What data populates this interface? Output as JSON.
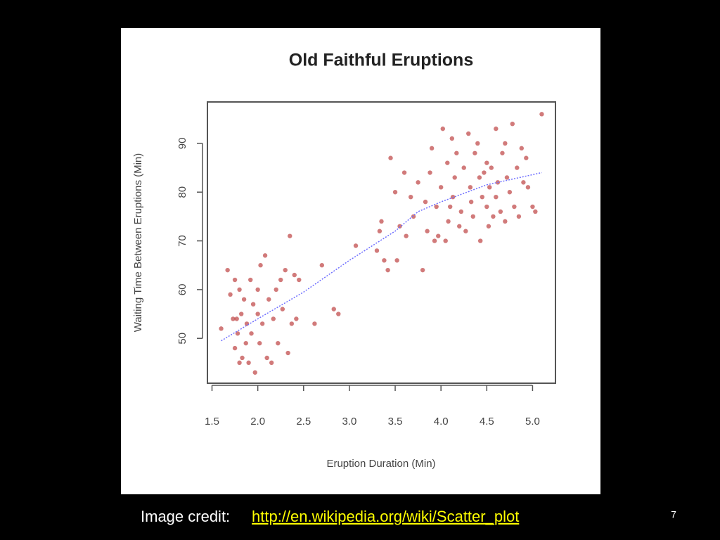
{
  "chart_data": {
    "type": "scatter",
    "title": "Old Faithful Eruptions",
    "x_label": "Eruption Duration (Min)",
    "y_label": "Waiting Time Between Eruptions (Min)",
    "xlim": [
      1.45,
      5.25
    ],
    "ylim": [
      40.8,
      98.5
    ],
    "xticks": [
      1.5,
      {
        "value": 2,
        "label": "2.0"
      },
      2.5,
      {
        "value": 3,
        "label": "3.0"
      },
      3.5,
      {
        "value": 4,
        "label": "4.0"
      },
      4.5,
      {
        "value": 5,
        "label": "5.0"
      }
    ],
    "yticks": [
      50,
      60,
      70,
      80,
      90
    ],
    "series": [
      {
        "type": "scatter",
        "color": "#b22222",
        "x": [
          1.6,
          1.67,
          1.7,
          1.73,
          1.75,
          1.75,
          1.78,
          1.8,
          1.8,
          1.82,
          1.83,
          1.85,
          1.87,
          1.88,
          1.9,
          1.92,
          1.93,
          1.95,
          1.97,
          2.0,
          2.0,
          2.02,
          2.03,
          2.05,
          2.08,
          2.1,
          2.12,
          2.15,
          2.17,
          2.2,
          2.22,
          2.25,
          2.27,
          2.3,
          2.33,
          2.35,
          2.37,
          2.4,
          2.42,
          2.45,
          2.62,
          2.7,
          2.83,
          2.88,
          1.77,
          3.07,
          3.35,
          3.38,
          3.42,
          3.52,
          3.55,
          3.3,
          3.33,
          3.45,
          3.5,
          3.6,
          3.62,
          3.67,
          3.7,
          3.75,
          3.8,
          3.83,
          3.85,
          3.88,
          3.9,
          3.93,
          3.95,
          3.97,
          4.0,
          4.02,
          4.05,
          4.07,
          4.08,
          4.1,
          4.12,
          4.13,
          4.15,
          4.17,
          4.2,
          4.22,
          4.25,
          4.27,
          4.3,
          4.32,
          4.33,
          4.35,
          4.37,
          4.4,
          4.42,
          4.43,
          4.45,
          4.47,
          4.5,
          4.5,
          4.52,
          4.53,
          4.55,
          4.57,
          4.6,
          4.6,
          4.62,
          4.65,
          4.67,
          4.7,
          4.7,
          4.72,
          4.75,
          4.78,
          4.8,
          4.83,
          4.85,
          4.88,
          4.9,
          4.93,
          4.95,
          5.0,
          5.03,
          5.1
        ],
        "values": [
          52,
          64,
          59,
          54,
          48,
          62,
          51,
          45,
          60,
          55,
          46,
          58,
          49,
          53,
          45,
          62,
          51,
          57,
          43,
          55,
          60,
          49,
          65,
          53,
          67,
          46,
          58,
          45,
          54,
          60,
          49,
          62,
          56,
          64,
          47,
          71,
          53,
          63,
          54,
          62,
          53,
          65,
          56,
          55,
          54,
          69,
          74,
          66,
          64,
          66,
          73,
          68,
          72,
          87,
          80,
          84,
          71,
          79,
          75,
          82,
          64,
          78,
          72,
          84,
          89,
          70,
          77,
          71,
          81,
          93,
          70,
          86,
          74,
          77,
          91,
          79,
          83,
          88,
          73,
          76,
          85,
          72,
          92,
          81,
          78,
          75,
          88,
          90,
          83,
          70,
          79,
          84,
          77,
          86,
          73,
          81,
          85,
          75,
          93,
          79,
          82,
          76,
          88,
          90,
          74,
          83,
          80,
          94,
          77,
          85,
          75,
          89,
          82,
          87,
          81,
          77,
          76,
          96
        ]
      },
      {
        "type": "line",
        "color": "#6f6fff",
        "x": [
          1.6,
          2.0,
          2.5,
          3.0,
          3.5,
          3.75,
          4.0,
          4.5,
          5.1
        ],
        "values": [
          49.5,
          54,
          59.5,
          66,
          72,
          76,
          78,
          81.5,
          84
        ]
      }
    ]
  },
  "slide": {
    "credit_label": "Image credit:",
    "credit_link": "http://en.wikipedia.org/wiki/Scatter_plot",
    "page_number": "7"
  }
}
